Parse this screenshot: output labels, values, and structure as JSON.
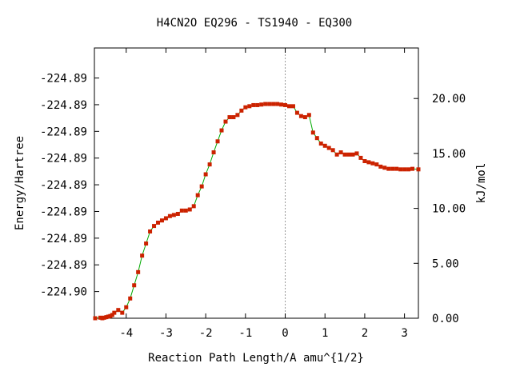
{
  "chart_data": {
    "type": "line",
    "title": "H4CN2O   EQ296 - TS1940 - EQ300",
    "xlabel": "Reaction Path Length/A amu^{1/2}",
    "ylabel": "Energy/Hartree",
    "y2label": "kJ/mol",
    "xlim": [
      -4.8,
      3.35
    ],
    "ylim": [
      -224.9007,
      -224.8926
    ],
    "y2lim": [
      0,
      24.6
    ],
    "x_ticks": [
      -4,
      -3,
      -2,
      -1,
      0,
      1,
      2,
      3
    ],
    "x_tick_labels": [
      "-4",
      "-3",
      "-2",
      "-1",
      "0",
      "1",
      "2",
      "3"
    ],
    "y_ticks": [
      -224.8999,
      -224.8991,
      -224.8983,
      -224.8975,
      -224.8967,
      -224.8959,
      -224.8951,
      -224.8943,
      -224.8935
    ],
    "y_tick_labels": [
      "-224.90",
      "-224.89",
      "-224.89",
      "-224.89",
      "-224.89",
      "-224.89",
      "-224.89",
      "-224.89",
      "-224.89"
    ],
    "y2_ticks": [
      0,
      5,
      10,
      15,
      20
    ],
    "y2_tick_labels": [
      "0.00",
      "5.00",
      "10.00",
      "15.00",
      "20.00"
    ],
    "vline_x": 0,
    "grid": false,
    "colors": {
      "line": "#00aa00",
      "marker": "#cc2200",
      "vline": "#999999"
    },
    "series": [
      {
        "x": [
          -4.78,
          -4.65,
          -4.6,
          -4.55,
          -4.5,
          -4.45,
          -4.4,
          -4.35,
          -4.3,
          -4.2,
          -4.1,
          -4.0,
          -3.9,
          -3.8,
          -3.7,
          -3.6,
          -3.5,
          -3.4,
          -3.3,
          -3.2,
          -3.1,
          -3.0,
          -2.9,
          -2.8,
          -2.7,
          -2.6,
          -2.5,
          -2.4,
          -2.3,
          -2.2,
          -2.1,
          -2.0,
          -1.9,
          -1.8,
          -1.7,
          -1.6,
          -1.5,
          -1.4,
          -1.3,
          -1.2,
          -1.1,
          -1.0,
          -0.9,
          -0.8,
          -0.7,
          -0.6,
          -0.5,
          -0.4,
          -0.3,
          -0.2,
          -0.1,
          0.0,
          0.1,
          0.2,
          0.3,
          0.4,
          0.5,
          0.6,
          0.7,
          0.8,
          0.9,
          1.0,
          1.1,
          1.2,
          1.3,
          1.4,
          1.5,
          1.6,
          1.7,
          1.8,
          1.9,
          2.0,
          2.1,
          2.2,
          2.3,
          2.4,
          2.5,
          2.6,
          2.7,
          2.8,
          2.9,
          3.0,
          3.1,
          3.2,
          3.35
        ],
        "y": [
          0.0,
          0.05,
          0.0,
          0.05,
          0.1,
          0.15,
          0.2,
          0.3,
          0.5,
          0.75,
          0.5,
          1.0,
          1.8,
          3.0,
          4.2,
          5.7,
          6.8,
          7.9,
          8.4,
          8.7,
          8.9,
          9.1,
          9.3,
          9.4,
          9.5,
          9.8,
          9.8,
          9.9,
          10.2,
          11.2,
          12.0,
          13.1,
          14.0,
          15.1,
          16.1,
          17.1,
          17.9,
          18.3,
          18.3,
          18.5,
          18.9,
          19.2,
          19.3,
          19.4,
          19.4,
          19.45,
          19.5,
          19.5,
          19.5,
          19.5,
          19.45,
          19.4,
          19.3,
          19.3,
          18.7,
          18.4,
          18.3,
          18.5,
          16.9,
          16.4,
          15.9,
          15.7,
          15.5,
          15.3,
          14.9,
          15.1,
          14.9,
          14.9,
          14.9,
          15.0,
          14.6,
          14.3,
          14.2,
          14.1,
          14.0,
          13.8,
          13.7,
          13.6,
          13.6,
          13.6,
          13.55,
          13.55,
          13.55,
          13.6,
          13.55
        ]
      }
    ]
  }
}
